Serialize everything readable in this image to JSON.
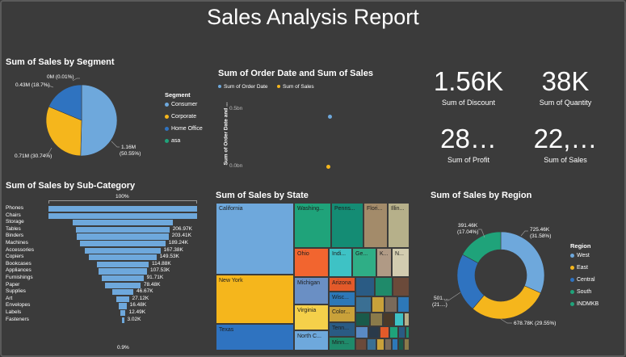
{
  "report_title": "Sales Analysis Report",
  "segment": {
    "title": "Sum of Sales by Segment",
    "legend_title": "Segment",
    "legend": [
      {
        "label": "Consumer",
        "color": "#6ea8dc"
      },
      {
        "label": "Corporate",
        "color": "#f5b61c"
      },
      {
        "label": "Home Office",
        "color": "#2f73c0"
      },
      {
        "label": "asa",
        "color": "#1fa37a"
      }
    ],
    "labels": {
      "home": "0M (0.01%)",
      "corp_home": "0.43M (18.7%)",
      "corporate": "0.71M (30.74%)",
      "consumer_val": "1.16M",
      "consumer_pct": "(50.55%)"
    }
  },
  "order_date": {
    "title": "Sum of Order Date and Sum of Sales",
    "legend": [
      {
        "label": "Sum of Order Date",
        "color": "#6ea8dc"
      },
      {
        "label": "Sum of Sales",
        "color": "#f5b61c"
      }
    ],
    "ylabel": "Sum of Order Date and ...",
    "ticks": [
      "0.5bn",
      "0.0bn"
    ]
  },
  "kpis": [
    {
      "value": "1.56K",
      "label": "Sum of Discount"
    },
    {
      "value": "38K",
      "label": "Sum of Quantity"
    },
    {
      "value": "28…",
      "label": "Sum of Profit"
    },
    {
      "value": "22,…",
      "label": "Sum of Sales"
    }
  ],
  "subcategory": {
    "title": "Sum of Sales by Sub-Category",
    "top_pct": "100%",
    "bottom_pct": "0.9%",
    "color": "#6ea8dc"
  },
  "state": {
    "title": "Sum of Sales by State",
    "cells": {
      "california": "California",
      "newyork": "New York",
      "texas": "Texas",
      "washington": "Washing...",
      "penn": "Penns...",
      "florida": "Flori...",
      "illinois": "Illin...",
      "ohio": "Ohio",
      "indiana": "Indi...",
      "georgia": "Ge...",
      "k": "K...",
      "n": "N...",
      "michigan": "Michigan",
      "arizona": "Arizona",
      "wisc": "Wisc...",
      "virginia": "Virginia",
      "colorado": "Color...",
      "northc": "North C...",
      "tenn": "Tenn...",
      "minn": "Minn..."
    }
  },
  "region": {
    "title": "Sum of Sales by Region",
    "legend_title": "Region",
    "legend": [
      {
        "label": "West",
        "color": "#6ea8dc"
      },
      {
        "label": "East",
        "color": "#f5b61c"
      },
      {
        "label": "Central",
        "color": "#2f73c0"
      },
      {
        "label": "South",
        "color": "#1fa37a"
      },
      {
        "label": "INDMKB",
        "color": "#1fa37a"
      }
    ],
    "labels": {
      "south_val": "391.46K",
      "south_pct": "(17.04%)",
      "west_val": "725.46K",
      "west_pct": "(31.58%)",
      "central_val": "501....",
      "central_pct": "(21....)",
      "east": "678.78K (29.55%)"
    }
  },
  "chart_data": [
    {
      "type": "pie",
      "title": "Sum of Sales by Segment",
      "categories": [
        "Consumer",
        "Corporate",
        "Home Office",
        "asa"
      ],
      "values": [
        1.16,
        0.71,
        0.43,
        0.0
      ],
      "unit": "M",
      "percents": [
        50.55,
        30.74,
        18.7,
        0.01
      ]
    },
    {
      "type": "scatter",
      "title": "Sum of Order Date and Sum of Sales",
      "series": [
        {
          "name": "Sum of Order Date",
          "values": [
            0.45
          ]
        },
        {
          "name": "Sum of Sales",
          "values": [
            0.0
          ]
        }
      ],
      "ylim": [
        0,
        0.5
      ],
      "unit": "bn"
    },
    {
      "type": "bar",
      "title": "Sum of Sales by Sub-Category",
      "categories": [
        "Phones",
        "Chairs",
        "Storage",
        "Tables",
        "Binders",
        "Machines",
        "Accessories",
        "Copiers",
        "Bookcases",
        "Appliances",
        "Furnishings",
        "Paper",
        "Supplies",
        "Art",
        "Envelopes",
        "Labels",
        "Fasteners"
      ],
      "values": [
        330.01,
        328.45,
        223.84,
        206.97,
        203.41,
        189.24,
        167.38,
        149.53,
        114.88,
        107.53,
        91.71,
        78.48,
        46.67,
        27.12,
        16.48,
        12.49,
        3.02
      ],
      "value_labels": [
        "",
        "",
        "",
        "206.97K",
        "203.41K",
        "189.24K",
        "167.38K",
        "149.53K",
        "114.88K",
        "107.53K",
        "91.71K",
        "78.48K",
        "46.67K",
        "27.12K",
        "16.48K",
        "12.49K",
        "3.02K"
      ],
      "unit": "K"
    },
    {
      "type": "pie",
      "title": "Sum of Sales by Region",
      "categories": [
        "West",
        "East",
        "Central",
        "South"
      ],
      "values": [
        725.46,
        678.78,
        501.0,
        391.46
      ],
      "unit": "K",
      "percents": [
        31.58,
        29.55,
        21.8,
        17.04
      ]
    }
  ]
}
